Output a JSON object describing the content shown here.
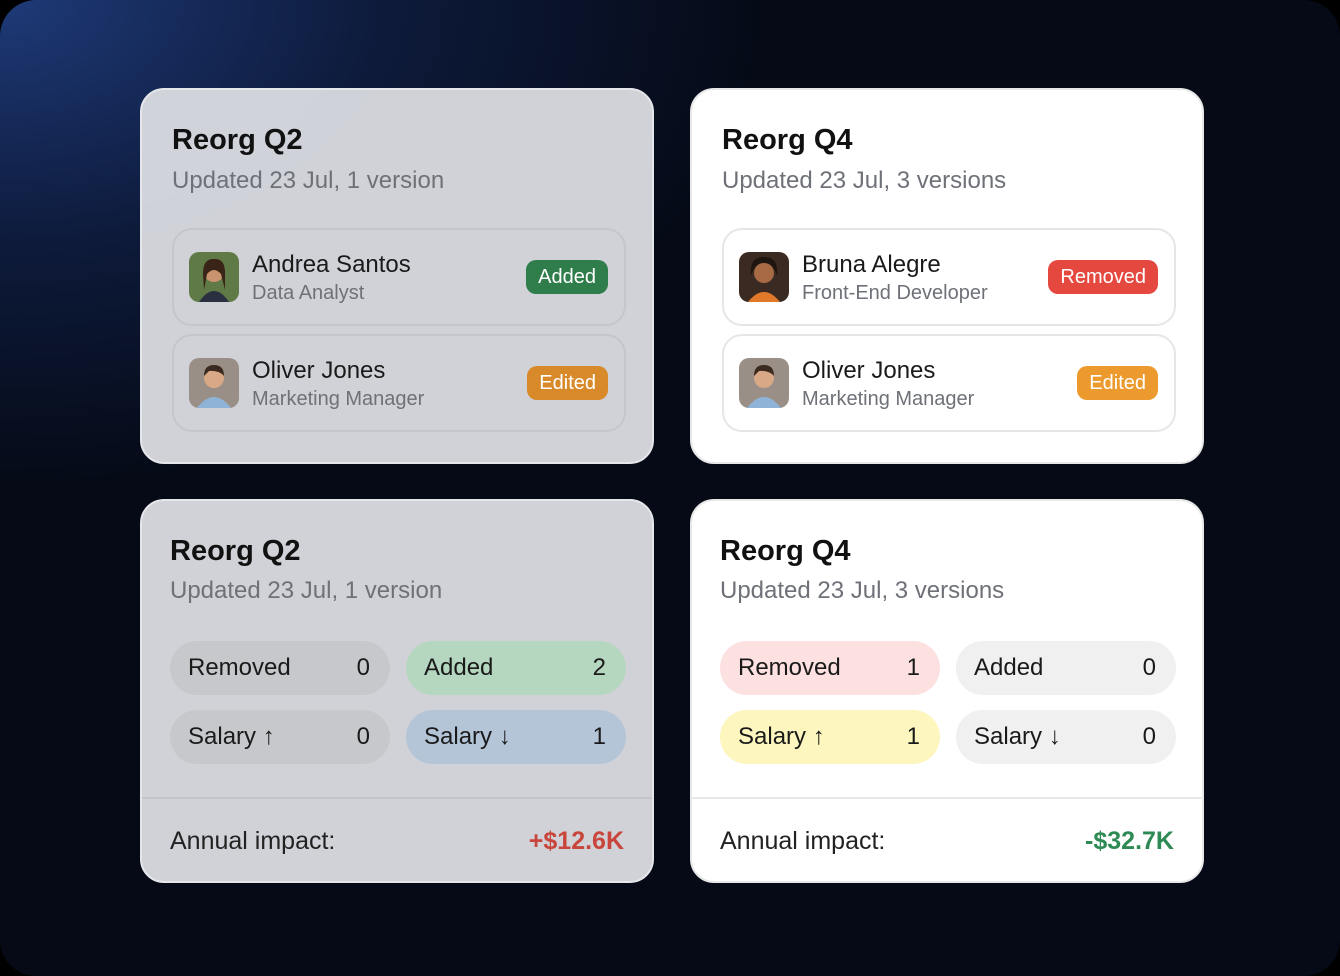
{
  "people_cards": [
    {
      "title": "Reorg Q2",
      "subtitle": "Updated 23 Jul, 1 version",
      "people": [
        {
          "name": "Andrea Santos",
          "role": "Data Analyst",
          "status": "Added"
        },
        {
          "name": "Oliver Jones",
          "role": "Marketing Manager",
          "status": "Edited"
        }
      ]
    },
    {
      "title": "Reorg Q4",
      "subtitle": "Updated 23 Jul, 3 versions",
      "people": [
        {
          "name": "Bruna Alegre",
          "role": "Front-End Developer",
          "status": "Removed"
        },
        {
          "name": "Oliver Jones",
          "role": "Marketing Manager",
          "status": "Edited"
        }
      ]
    }
  ],
  "summary_cards": [
    {
      "title": "Reorg Q2",
      "subtitle": "Updated 23 Jul, 1 version",
      "stats": [
        {
          "label": "Removed",
          "count": 0
        },
        {
          "label": "Added",
          "count": 2
        },
        {
          "label": "Salary ↑",
          "count": 0
        },
        {
          "label": "Salary ↓",
          "count": 1
        }
      ],
      "impact_label": "Annual impact:",
      "impact": "+$12.6K"
    },
    {
      "title": "Reorg Q4",
      "subtitle": "Updated 23 Jul, 3 versions",
      "stats": [
        {
          "label": "Removed",
          "count": 1
        },
        {
          "label": "Added",
          "count": 0
        },
        {
          "label": "Salary ↑",
          "count": 1
        },
        {
          "label": "Salary ↓",
          "count": 0
        }
      ],
      "impact_label": "Annual impact:",
      "impact": "-$32.7K"
    }
  ]
}
